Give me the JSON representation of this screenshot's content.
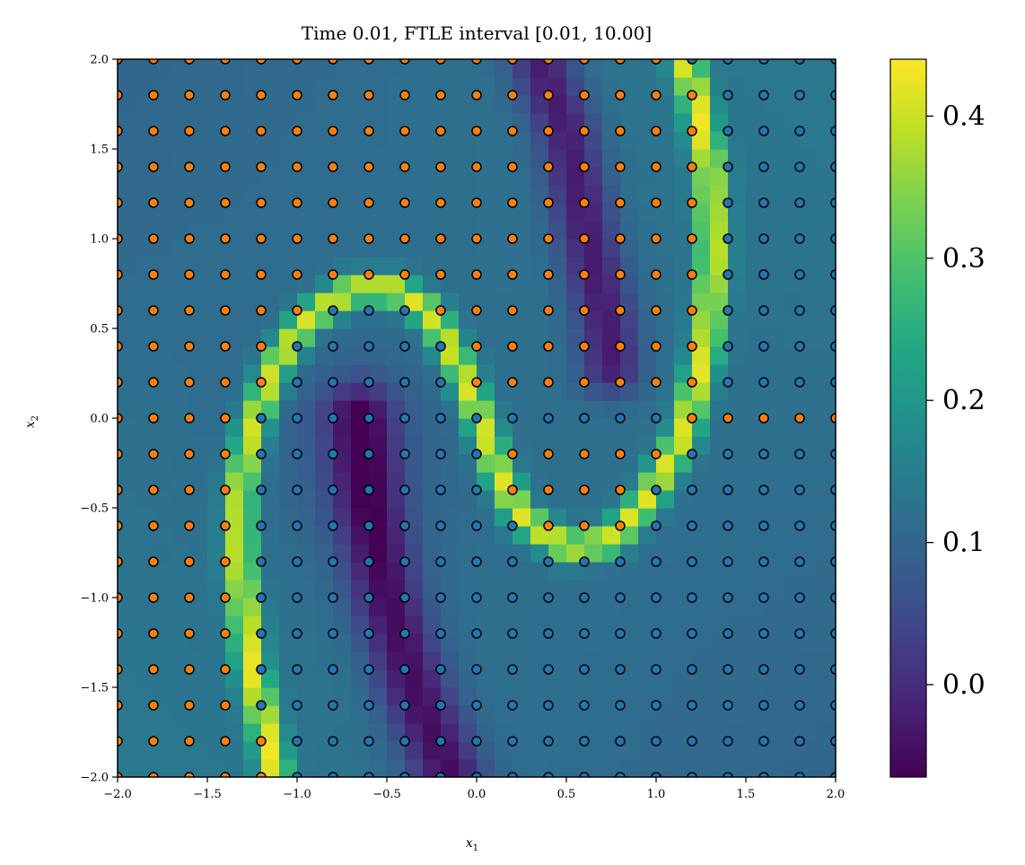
{
  "chart_data": {
    "type": "heatmap",
    "title": "Time 0.01, FTLE interval [0.01, 10.00]",
    "xlabel": "x",
    "xlabel_sub": "1",
    "ylabel": "x",
    "ylabel_sub": "2",
    "xlim": [
      -2.0,
      2.0
    ],
    "ylim": [
      -2.0,
      2.0
    ],
    "xticks": [
      -2.0,
      -1.5,
      -1.0,
      -0.5,
      0.0,
      0.5,
      1.0,
      1.5,
      2.0
    ],
    "xtick_labels": [
      "−2.0",
      "−1.5",
      "−1.0",
      "−0.5",
      "0.0",
      "0.5",
      "1.0",
      "1.5",
      "2.0"
    ],
    "yticks": [
      -2.0,
      -1.5,
      -1.0,
      -0.5,
      0.0,
      0.5,
      1.0,
      1.5,
      2.0
    ],
    "ytick_labels": [
      "−2.0",
      "−1.5",
      "−1.0",
      "−0.5",
      "0.0",
      "0.5",
      "1.0",
      "1.5",
      "2.0"
    ],
    "colormap": "viridis",
    "colorbar": {
      "vmin": -0.065,
      "vmax": 0.44,
      "ticks": [
        0.0,
        0.1,
        0.2,
        0.3,
        0.4
      ],
      "tick_labels": [
        "0.0",
        "0.1",
        "0.2",
        "0.3",
        "0.4"
      ]
    },
    "grid_points": {
      "x_start": -2.0,
      "y_start": -2.0,
      "step": 0.2,
      "count_x": 21,
      "count_y": 21,
      "marker_edge_color": "#000000",
      "categories": [
        {
          "name": "orange",
          "color": "#ff7f0e",
          "description": "points on left / upper side of ridge"
        },
        {
          "name": "blue",
          "color": "#1f77b4",
          "description": "points on right / lower side of ridge"
        }
      ]
    },
    "ridge": {
      "description": "high FTLE ridge (S-shaped curve)",
      "value": 0.42
    }
  }
}
